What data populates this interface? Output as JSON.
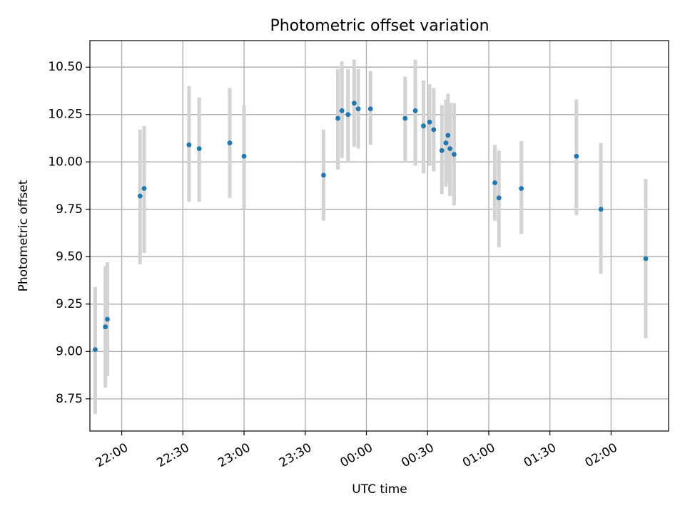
{
  "chart_data": {
    "type": "scatter",
    "title": "Photometric offset variation",
    "xlabel": "UTC time",
    "ylabel": "Photometric offset",
    "grid": true,
    "x_time_range": [
      "21:47",
      "02:25"
    ],
    "ylim": [
      8.58,
      10.64
    ],
    "x_ticks": [
      {
        "time": "22:00",
        "label": "22:00"
      },
      {
        "time": "22:30",
        "label": "22:30"
      },
      {
        "time": "23:00",
        "label": "23:00"
      },
      {
        "time": "23:30",
        "label": "23:30"
      },
      {
        "time": "00:00",
        "label": "00:00"
      },
      {
        "time": "00:30",
        "label": "00:30"
      },
      {
        "time": "01:00",
        "label": "01:00"
      },
      {
        "time": "01:30",
        "label": "01:30"
      },
      {
        "time": "02:00",
        "label": "02:00"
      }
    ],
    "y_ticks": [
      {
        "value": 8.75,
        "label": "8.75"
      },
      {
        "value": 9.0,
        "label": "9.00"
      },
      {
        "value": 9.25,
        "label": "9.25"
      },
      {
        "value": 9.5,
        "label": "9.50"
      },
      {
        "value": 9.75,
        "label": "9.75"
      },
      {
        "value": 10.0,
        "label": "10.00"
      },
      {
        "value": 10.25,
        "label": "10.25"
      },
      {
        "value": 10.5,
        "label": "10.50"
      }
    ],
    "series": [
      {
        "color": "#1f77b4",
        "error_bar_color": "#d3d3d3",
        "points": [
          {
            "x": "21:47",
            "y": 9.01,
            "low": 8.67,
            "high": 9.34
          },
          {
            "x": "21:52",
            "y": 9.13,
            "low": 8.81,
            "high": 9.45
          },
          {
            "x": "21:53",
            "y": 9.17,
            "low": 8.87,
            "high": 9.47
          },
          {
            "x": "22:09",
            "y": 9.82,
            "low": 9.46,
            "high": 10.17
          },
          {
            "x": "22:11",
            "y": 9.86,
            "low": 9.52,
            "high": 10.19
          },
          {
            "x": "22:33",
            "y": 10.09,
            "low": 9.79,
            "high": 10.4
          },
          {
            "x": "22:38",
            "y": 10.07,
            "low": 9.79,
            "high": 10.34
          },
          {
            "x": "22:53",
            "y": 10.1,
            "low": 9.81,
            "high": 10.39
          },
          {
            "x": "23:00",
            "y": 10.03,
            "low": 9.75,
            "high": 10.3
          },
          {
            "x": "23:39",
            "y": 9.93,
            "low": 9.69,
            "high": 10.17
          },
          {
            "x": "23:46",
            "y": 10.23,
            "low": 9.96,
            "high": 10.49
          },
          {
            "x": "23:48",
            "y": 10.27,
            "low": 10.02,
            "high": 10.53
          },
          {
            "x": "23:51",
            "y": 10.25,
            "low": 10.0,
            "high": 10.49
          },
          {
            "x": "23:54",
            "y": 10.31,
            "low": 10.08,
            "high": 10.54
          },
          {
            "x": "23:56",
            "y": 10.28,
            "low": 10.07,
            "high": 10.49
          },
          {
            "x": "00:02",
            "y": 10.28,
            "low": 10.09,
            "high": 10.48
          },
          {
            "x": "00:19",
            "y": 10.23,
            "low": 10.0,
            "high": 10.45
          },
          {
            "x": "00:24",
            "y": 10.27,
            "low": 9.98,
            "high": 10.54
          },
          {
            "x": "00:28",
            "y": 10.19,
            "low": 9.94,
            "high": 10.43
          },
          {
            "x": "00:31",
            "y": 10.21,
            "low": 9.98,
            "high": 10.41
          },
          {
            "x": "00:33",
            "y": 10.17,
            "low": 9.95,
            "high": 10.39
          },
          {
            "x": "00:37",
            "y": 10.06,
            "low": 9.83,
            "high": 10.3
          },
          {
            "x": "00:39",
            "y": 10.1,
            "low": 9.87,
            "high": 10.33
          },
          {
            "x": "00:40",
            "y": 10.14,
            "low": 9.89,
            "high": 10.36
          },
          {
            "x": "00:41",
            "y": 10.07,
            "low": 9.82,
            "high": 10.31
          },
          {
            "x": "00:43",
            "y": 10.04,
            "low": 9.77,
            "high": 10.31
          },
          {
            "x": "01:03",
            "y": 9.89,
            "low": 9.69,
            "high": 10.09
          },
          {
            "x": "01:05",
            "y": 9.81,
            "low": 9.55,
            "high": 10.06
          },
          {
            "x": "01:16",
            "y": 9.86,
            "low": 9.62,
            "high": 10.11
          },
          {
            "x": "01:43",
            "y": 10.03,
            "low": 9.72,
            "high": 10.33
          },
          {
            "x": "01:55",
            "y": 9.75,
            "low": 9.41,
            "high": 10.1
          },
          {
            "x": "02:17",
            "y": 9.49,
            "low": 9.07,
            "high": 9.91
          }
        ]
      }
    ]
  }
}
